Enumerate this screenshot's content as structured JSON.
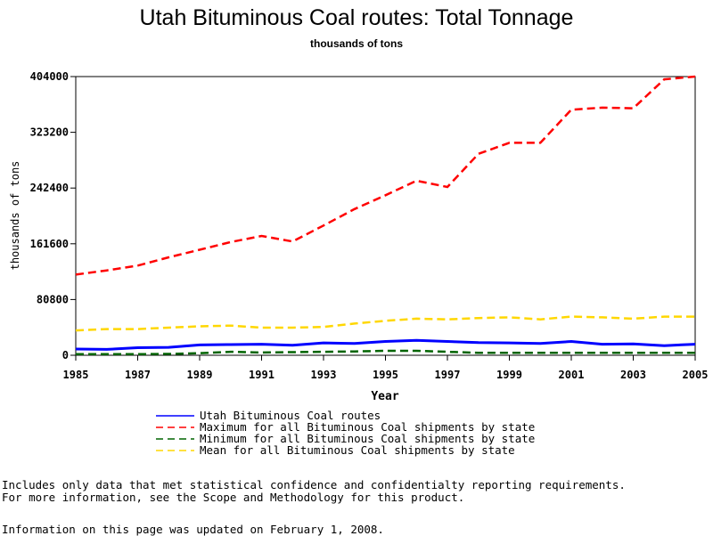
{
  "chart_data": {
    "type": "line",
    "title": "Utah Bituminous Coal routes: Total Tonnage",
    "subtitle": "thousands of tons",
    "xlabel": "Year",
    "ylabel": "thousands of tons",
    "xlim": [
      1985,
      2005
    ],
    "ylim": [
      0,
      404000
    ],
    "xticks": [
      "1985",
      "1987",
      "1989",
      "1991",
      "1993",
      "1995",
      "1997",
      "1999",
      "2001",
      "2003",
      "2005"
    ],
    "yticks": [
      "0",
      "80800",
      "161600",
      "242400",
      "323200",
      "404000"
    ],
    "x": [
      1985,
      1986,
      1987,
      1988,
      1989,
      1990,
      1991,
      1992,
      1993,
      1994,
      1995,
      1996,
      1997,
      1998,
      1999,
      2000,
      2001,
      2002,
      2003,
      2004,
      2005
    ],
    "series": [
      {
        "name": "Utah Bituminous Coal routes",
        "color": "#0000ff",
        "dash": "solid",
        "values": [
          9000,
          8500,
          11000,
          11500,
          15000,
          15500,
          16000,
          14500,
          18000,
          17000,
          20000,
          21500,
          20000,
          18500,
          18000,
          17000,
          20000,
          16000,
          16500,
          14000,
          16000
        ]
      },
      {
        "name": "Maximum for all Bituminous Coal shipments by state",
        "color": "#ff0000",
        "dash": "dashed",
        "values": [
          117000,
          123000,
          130000,
          142000,
          153000,
          164000,
          173000,
          165000,
          188000,
          212000,
          232000,
          253000,
          244000,
          292000,
          308000,
          308000,
          356000,
          359000,
          358000,
          400000,
          404000
        ]
      },
      {
        "name": "Minimum for all Bituminous Coal shipments by state",
        "color": "#006400",
        "dash": "dashed",
        "values": [
          1500,
          1500,
          1500,
          2000,
          3000,
          5000,
          4000,
          4500,
          5000,
          5500,
          6500,
          6500,
          5000,
          3500,
          3500,
          3500,
          3500,
          3500,
          3500,
          3500,
          3500
        ]
      },
      {
        "name": "Mean for all Bituminous Coal shipments by state",
        "color": "#ffd700",
        "dash": "dashed",
        "values": [
          36000,
          38000,
          38000,
          40000,
          42000,
          43000,
          40000,
          40000,
          41000,
          46000,
          50000,
          53000,
          52000,
          54000,
          55000,
          52000,
          56000,
          55000,
          53000,
          56000,
          56000
        ]
      }
    ],
    "legend_position": "bottom",
    "grid": false
  },
  "notes": [
    "Includes only data that met statistical confidence and confidentialty reporting requirements.",
    "For more information, see the Scope and Methodology for this product."
  ],
  "updated": "Information on this page was updated on February 1, 2008."
}
